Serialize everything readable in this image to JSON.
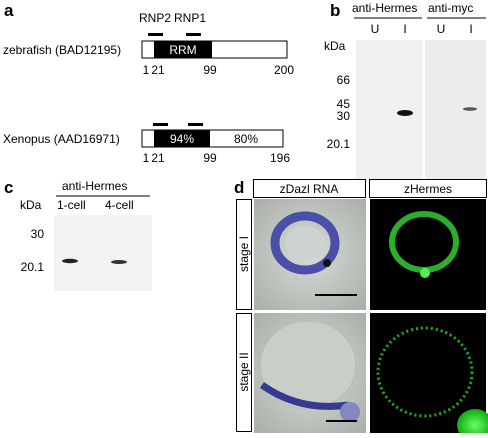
{
  "panel_a": {
    "label": "a",
    "motifs": [
      "RNP2",
      "RNP1"
    ],
    "proteins": [
      {
        "name": "zebrafish (BAD12195)",
        "domain": "RRM",
        "positions": [
          1,
          21,
          99,
          200
        ]
      },
      {
        "name": "Xenopus (AAD16971)",
        "domain": "94%",
        "tail": "80%",
        "positions": [
          1,
          21,
          99,
          196
        ]
      }
    ]
  },
  "panel_b": {
    "label": "b",
    "kda": "kDa",
    "antibodies": [
      "anti-Hermes",
      "anti-myc"
    ],
    "lanes": [
      "U",
      "I",
      "U",
      "I"
    ],
    "markers": [
      66,
      45,
      30,
      20.1
    ]
  },
  "panel_c": {
    "label": "c",
    "antibody": "anti-Hermes",
    "kda": "kDa",
    "lanes": [
      "1-cell",
      "4-cell"
    ],
    "markers": [
      30,
      20.1
    ]
  },
  "panel_d": {
    "label": "d",
    "columns": [
      "zDazl RNA",
      "zHermes"
    ],
    "rows": [
      "stage I",
      "stage II"
    ]
  }
}
